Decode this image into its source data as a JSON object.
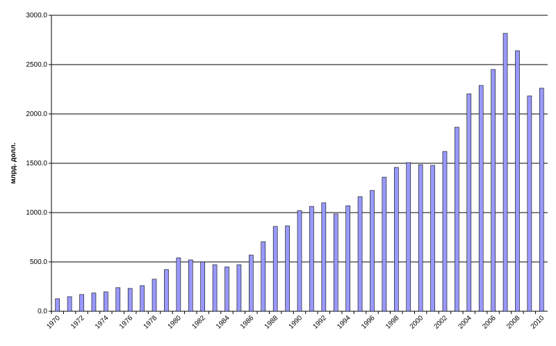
{
  "chart_data": {
    "type": "bar",
    "y_label": "млрд. долл.",
    "categories": [
      "1970",
      null,
      "1972",
      null,
      "1974",
      null,
      "1976",
      null,
      "1978",
      null,
      "1980",
      null,
      "1982",
      null,
      "1984",
      null,
      "1986",
      null,
      "1988",
      null,
      "1990",
      null,
      "1992",
      null,
      "1994",
      null,
      "1996",
      null,
      "1998",
      null,
      "2000",
      null,
      "2002",
      null,
      "2004",
      null,
      "2006",
      null,
      "2008",
      null,
      "2010"
    ],
    "values": [
      127,
      148,
      170,
      185,
      197,
      240,
      232,
      260,
      325,
      423,
      542,
      521,
      500,
      472,
      450,
      472,
      570,
      705,
      860,
      866,
      1021,
      1063,
      1099,
      986,
      1070,
      1162,
      1225,
      1359,
      1458,
      1507,
      1486,
      1479,
      1620,
      1866,
      2204,
      2289,
      2451,
      2817,
      2641,
      2183,
      2261
    ],
    "color": "#9999ff",
    "ylim": [
      0,
      3000
    ],
    "yticks": [
      {
        "value": 0,
        "label": "0.0"
      },
      {
        "value": 500,
        "label": "500.0"
      },
      {
        "value": 1000,
        "label": "1000.0"
      },
      {
        "value": 1500,
        "label": "1500.0"
      },
      {
        "value": 2000,
        "label": "2000.0"
      },
      {
        "value": 2500,
        "label": "2500.0"
      },
      {
        "value": 3000,
        "label": "3000.0"
      }
    ],
    "grid": true
  }
}
